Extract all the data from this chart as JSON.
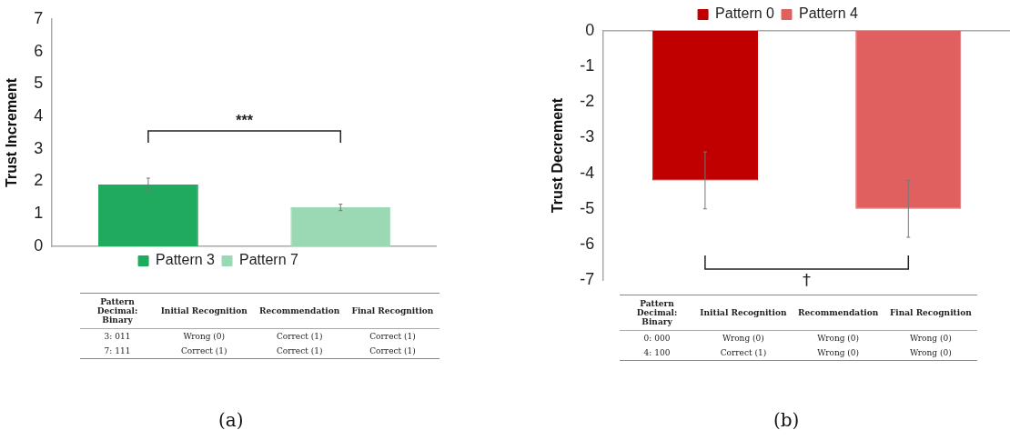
{
  "chart_data": [
    {
      "type": "bar",
      "ylabel": "Trust Increment",
      "categories": [
        null,
        null
      ],
      "series": [
        {
          "name": "Pattern 3",
          "color": "#1faa5f",
          "values": [
            1.9,
            null
          ],
          "errors": [
            [
              1.7,
              2.1
            ],
            null
          ]
        },
        {
          "name": "Pattern 7",
          "color": "#9ad9b4",
          "values": [
            null,
            1.2
          ],
          "errors": [
            null,
            [
              1.1,
              1.3
            ]
          ]
        }
      ],
      "ylim": [
        0,
        7
      ],
      "yticks": [
        0,
        1,
        2,
        3,
        4,
        5,
        6,
        7
      ],
      "grid": false,
      "legend": "bottom",
      "tick_labels": "y",
      "annotations": [
        "***",
        "Pattern Decimal: Binary",
        "Initial Recognition",
        "Recommendation",
        "Final Recognition",
        "3: 011",
        "Wrong (0)",
        "Correct (1)",
        "Correct (1)",
        "7: 111",
        "Correct (1)",
        "Correct (1)",
        "Correct (1)",
        "(a)"
      ]
    },
    {
      "type": "bar",
      "ylabel": "Trust Decrement",
      "categories": [
        null,
        null
      ],
      "series": [
        {
          "name": "Pattern 0",
          "color": "#c00000",
          "values": [
            -4.2,
            null
          ],
          "errors": [
            [
              -5.0,
              -3.4
            ],
            null
          ]
        },
        {
          "name": "Pattern 4",
          "color": "#e06060",
          "values": [
            null,
            -5.0
          ],
          "errors": [
            null,
            [
              -5.8,
              -4.2
            ]
          ]
        }
      ],
      "ylim": [
        -7,
        0
      ],
      "yticks": [
        -7,
        -6,
        -5,
        -4,
        -3,
        -2,
        -1,
        0
      ],
      "grid": false,
      "legend": "top",
      "tick_labels": "y",
      "annotations": [
        "†",
        "Pattern Decimal: Binary",
        "Initial Recognition",
        "Recommendation",
        "Final Recognition",
        "0: 000",
        "Wrong (0)",
        "Wrong (0)",
        "Wrong (0)",
        "4: 100",
        "Correct (1)",
        "Wrong (0)",
        "Wrong (0)",
        "(b)"
      ]
    }
  ]
}
